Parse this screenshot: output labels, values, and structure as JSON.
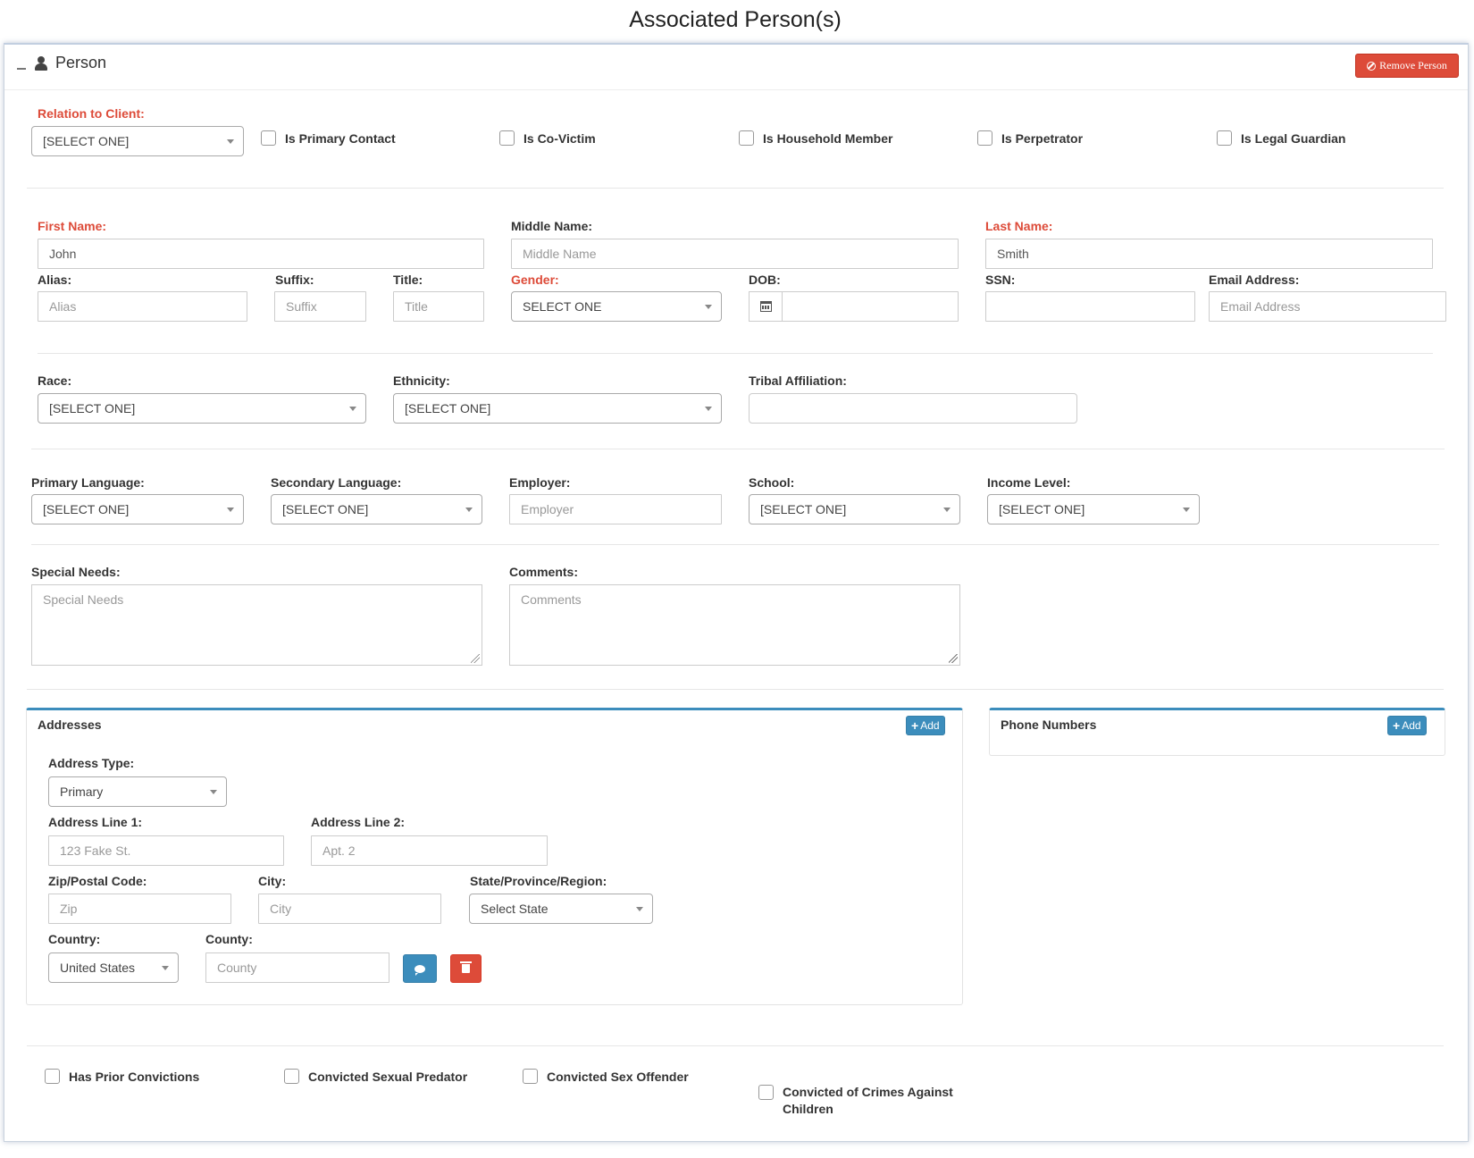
{
  "page": {
    "title": "Associated Person(s)"
  },
  "panel": {
    "title": "Person",
    "remove_label": "Remove Person"
  },
  "relation": {
    "label": "Relation to Client:",
    "value": "[SELECT ONE]",
    "checkboxes": [
      "Is Primary Contact",
      "Is Co-Victim",
      "Is Household Member",
      "Is Perpetrator",
      "Is Legal Guardian"
    ]
  },
  "name": {
    "first_label": "First Name:",
    "first_value": "John",
    "middle_label": "Middle Name:",
    "middle_placeholder": "Middle Name",
    "last_label": "Last Name:",
    "last_value": "Smith",
    "alias_label": "Alias:",
    "alias_placeholder": "Alias",
    "suffix_label": "Suffix:",
    "suffix_placeholder": "Suffix",
    "title_label": "Title:",
    "title_placeholder": "Title",
    "gender_label": "Gender:",
    "gender_value": "SELECT ONE",
    "dob_label": "DOB:",
    "ssn_label": "SSN:",
    "email_label": "Email Address:",
    "email_placeholder": "Email Address"
  },
  "demographics": {
    "race_label": "Race:",
    "race_value": "[SELECT ONE]",
    "ethnicity_label": "Ethnicity:",
    "ethnicity_value": "[SELECT ONE]",
    "tribal_label": "Tribal Affiliation:"
  },
  "background": {
    "primary_language_label": "Primary Language:",
    "primary_language_value": "[SELECT ONE]",
    "secondary_language_label": "Secondary Language:",
    "secondary_language_value": "[SELECT ONE]",
    "employer_label": "Employer:",
    "employer_placeholder": "Employer",
    "school_label": "School:",
    "school_value": "[SELECT ONE]",
    "income_label": "Income Level:",
    "income_value": "[SELECT ONE]"
  },
  "notes": {
    "special_needs_label": "Special Needs:",
    "special_needs_placeholder": "Special Needs",
    "comments_label": "Comments:",
    "comments_placeholder": "Comments"
  },
  "addresses": {
    "title": "Addresses",
    "add_label": "Add",
    "type_label": "Address Type:",
    "type_value": "Primary",
    "line1_label": "Address Line 1:",
    "line1_placeholder": "123 Fake St.",
    "line2_label": "Address Line 2:",
    "line2_placeholder": "Apt. 2",
    "zip_label": "Zip/Postal Code:",
    "zip_placeholder": "Zip",
    "city_label": "City:",
    "city_placeholder": "City",
    "state_label": "State/Province/Region:",
    "state_value": "Select State",
    "country_label": "Country:",
    "country_value": "United States",
    "county_label": "County:",
    "county_placeholder": "County"
  },
  "phones": {
    "title": "Phone Numbers",
    "add_label": "Add"
  },
  "convictions": [
    "Has Prior Convictions",
    "Convicted Sexual Predator",
    "Convicted Sex Offender",
    "Convicted of Crimes Against Children"
  ],
  "colors": {
    "danger": "#dd4b39",
    "primary": "#3c8dbc",
    "required_label": "#dd4b39"
  }
}
